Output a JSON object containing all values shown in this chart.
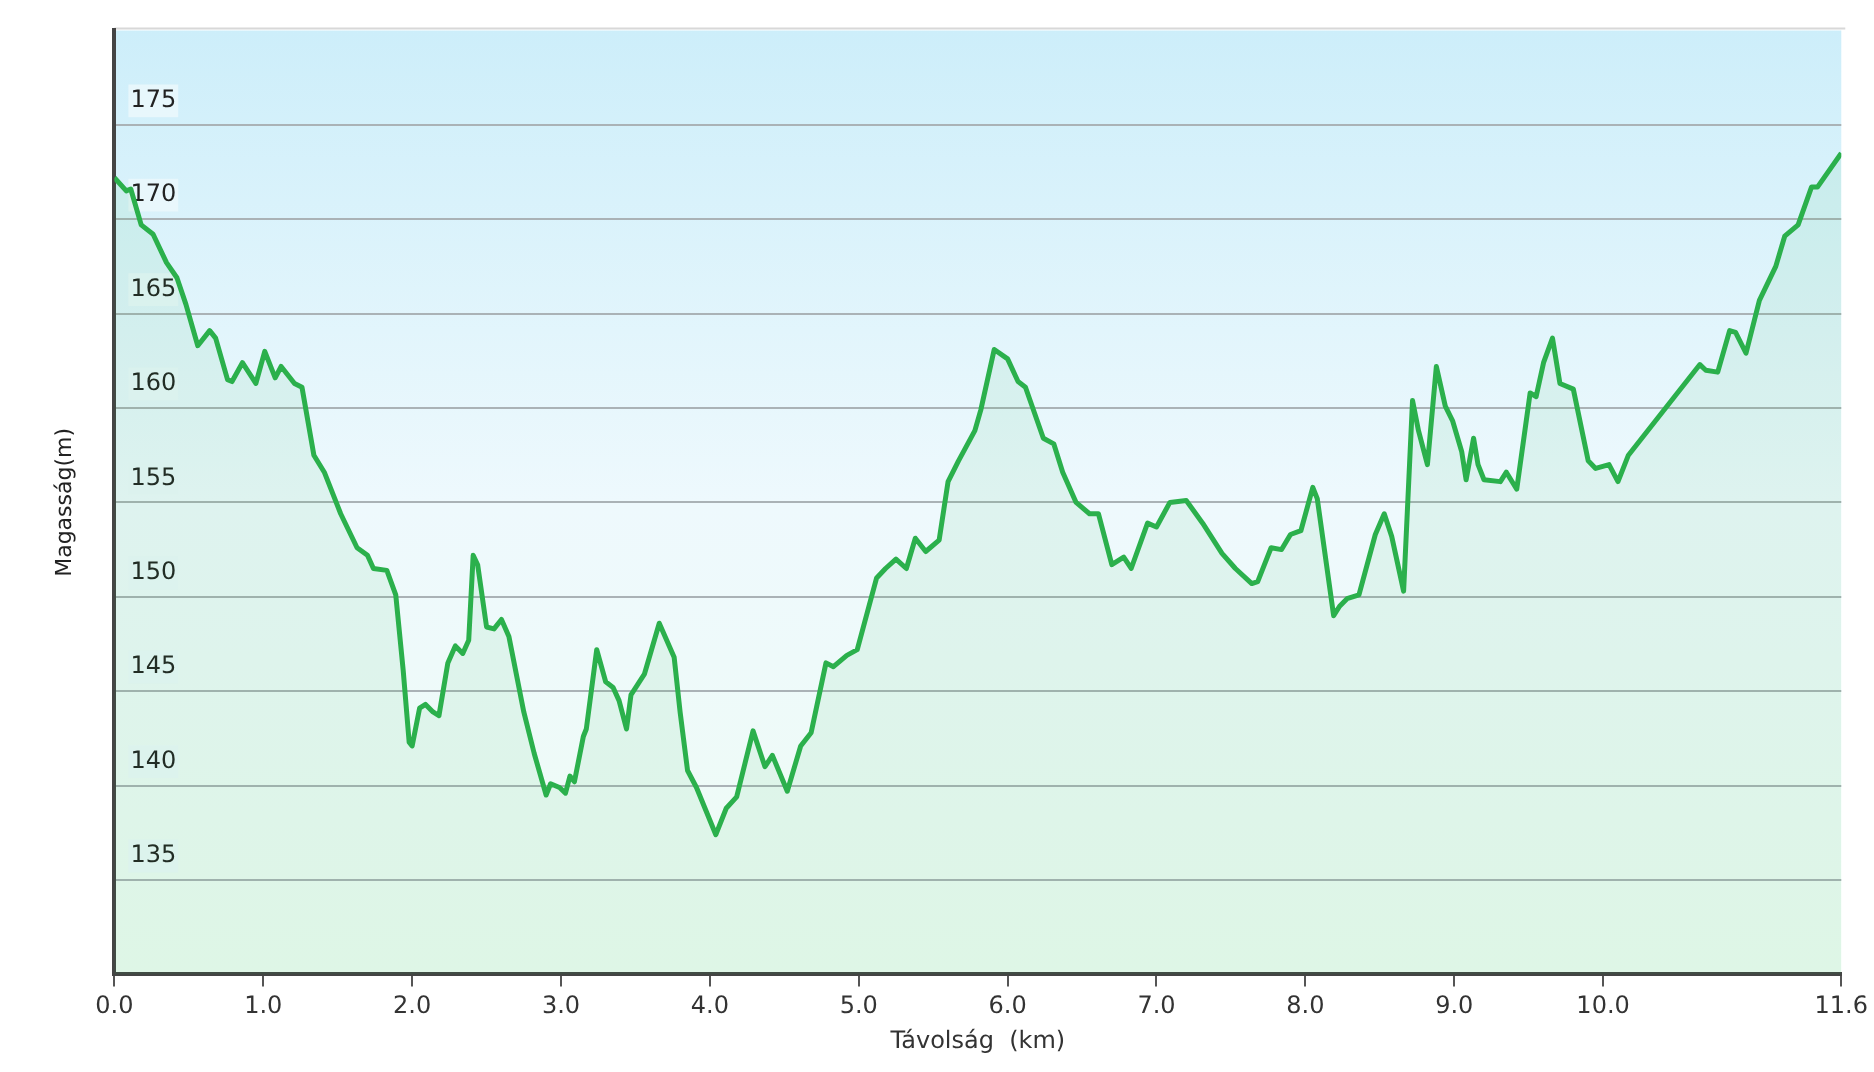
{
  "chart_data": {
    "type": "area",
    "xlabel": "Távolság  (km)",
    "ylabel": "Magasság(m)",
    "xlim": [
      0,
      11.6
    ],
    "ylim": [
      130,
      180
    ],
    "xticks": [
      {
        "value": 0,
        "label": "0.0"
      },
      {
        "value": 1,
        "label": "1.0"
      },
      {
        "value": 2,
        "label": "2.0"
      },
      {
        "value": 3,
        "label": "3.0"
      },
      {
        "value": 4,
        "label": "4.0"
      },
      {
        "value": 5,
        "label": "5.0"
      },
      {
        "value": 6,
        "label": "6.0"
      },
      {
        "value": 7,
        "label": "7.0"
      },
      {
        "value": 8,
        "label": "8.0"
      },
      {
        "value": 9,
        "label": "9.0"
      },
      {
        "value": 10,
        "label": "10.0"
      },
      11.6
    ],
    "yticks": [
      135,
      140,
      145,
      150,
      155,
      160,
      165,
      170,
      175
    ],
    "grid": "y",
    "legend": false,
    "marker": "none",
    "line_style": "solid",
    "series": [
      {
        "color": "#2bb04c",
        "x": [
          0,
          0.08,
          0.11,
          0.18,
          0.26,
          0.35,
          0.42,
          0.48,
          0.56,
          0.64,
          0.68,
          0.76,
          0.79,
          0.86,
          0.95,
          1.01,
          1.08,
          1.12,
          1.21,
          1.26,
          1.34,
          1.41,
          1.52,
          1.63,
          1.7,
          1.74,
          1.83,
          1.89,
          1.94,
          1.98,
          2.0,
          2.05,
          2.09,
          2.14,
          2.18,
          2.24,
          2.29,
          2.34,
          2.38,
          2.41,
          2.44,
          2.5,
          2.55,
          2.6,
          2.65,
          2.75,
          2.82,
          2.9,
          2.93,
          2.99,
          3.03,
          3.06,
          3.09,
          3.15,
          3.17,
          3.24,
          3.3,
          3.35,
          3.39,
          3.44,
          3.47,
          3.56,
          3.66,
          3.76,
          3.8,
          3.85,
          3.91,
          4.04,
          4.11,
          4.18,
          4.29,
          4.37,
          4.42,
          4.52,
          4.61,
          4.68,
          4.78,
          4.83,
          4.92,
          4.99,
          5.12,
          5.18,
          5.25,
          5.32,
          5.38,
          5.45,
          5.54,
          5.6,
          5.67,
          5.78,
          5.82,
          5.91,
          6.0,
          6.07,
          6.12,
          6.24,
          6.31,
          6.37,
          6.46,
          6.55,
          6.61,
          6.7,
          6.78,
          6.83,
          6.94,
          7.0,
          7.09,
          7.2,
          7.31,
          7.44,
          7.53,
          7.64,
          7.68,
          7.77,
          7.84,
          7.9,
          7.97,
          8.05,
          8.08,
          8.19,
          8.23,
          8.28,
          8.36,
          8.47,
          8.53,
          8.58,
          8.66,
          8.72,
          8.76,
          8.82,
          8.88,
          8.94,
          8.99,
          9.05,
          9.08,
          9.13,
          9.16,
          9.2,
          9.31,
          9.35,
          9.42,
          9.51,
          9.55,
          9.6,
          9.66,
          9.71,
          9.8,
          9.9,
          9.95,
          10.04,
          10.1,
          10.17,
          10.65,
          10.69,
          10.77,
          10.85,
          10.89,
          10.96,
          11.05,
          11.16,
          11.22,
          11.31,
          11.4,
          11.44,
          11.6
        ],
        "values": [
          172.2,
          171.5,
          171.6,
          169.7,
          169.2,
          167.7,
          166.9,
          165.5,
          163.3,
          164.1,
          163.7,
          161.5,
          161.4,
          162.4,
          161.3,
          163,
          161.6,
          162.2,
          161.3,
          161.1,
          157.5,
          156.6,
          154.4,
          152.6,
          152.2,
          151.5,
          151.4,
          150.1,
          146.1,
          142.3,
          142.1,
          144.1,
          144.3,
          143.9,
          143.7,
          146.5,
          147.4,
          147,
          147.7,
          152.2,
          151.7,
          148.4,
          148.3,
          148.8,
          147.9,
          143.9,
          141.7,
          139.5,
          140.1,
          139.9,
          139.6,
          140.5,
          140.2,
          142.6,
          143,
          147.2,
          145.5,
          145.2,
          144.5,
          143,
          144.8,
          145.9,
          148.6,
          146.8,
          143.9,
          140.8,
          139.9,
          137.4,
          138.8,
          139.4,
          142.9,
          141,
          141.6,
          139.7,
          142.1,
          142.8,
          146.5,
          146.3,
          146.9,
          147.2,
          151,
          151.5,
          152,
          151.5,
          153.1,
          152.4,
          153,
          156.1,
          157.2,
          158.8,
          159.9,
          163.1,
          162.6,
          161.4,
          161.1,
          158.4,
          158.1,
          156.6,
          155,
          154.4,
          154.4,
          151.7,
          152.1,
          151.5,
          153.9,
          153.7,
          155,
          155.1,
          153.9,
          152.3,
          151.5,
          150.7,
          150.8,
          152.6,
          152.5,
          153.3,
          153.5,
          155.8,
          155.2,
          149,
          149.5,
          149.9,
          150.1,
          153.3,
          154.4,
          153.2,
          150.3,
          160.4,
          158.8,
          157,
          162.2,
          160.1,
          159.3,
          157.7,
          156.2,
          158.4,
          157,
          156.2,
          156.1,
          156.6,
          155.7,
          160.8,
          160.6,
          162.4,
          163.7,
          161.3,
          161,
          157.2,
          156.8,
          157,
          156.1,
          157.5,
          162.3,
          162,
          161.9,
          164.1,
          164,
          162.9,
          165.7,
          167.5,
          169.1,
          169.7,
          171.7,
          171.7,
          173.5
        ]
      }
    ]
  }
}
